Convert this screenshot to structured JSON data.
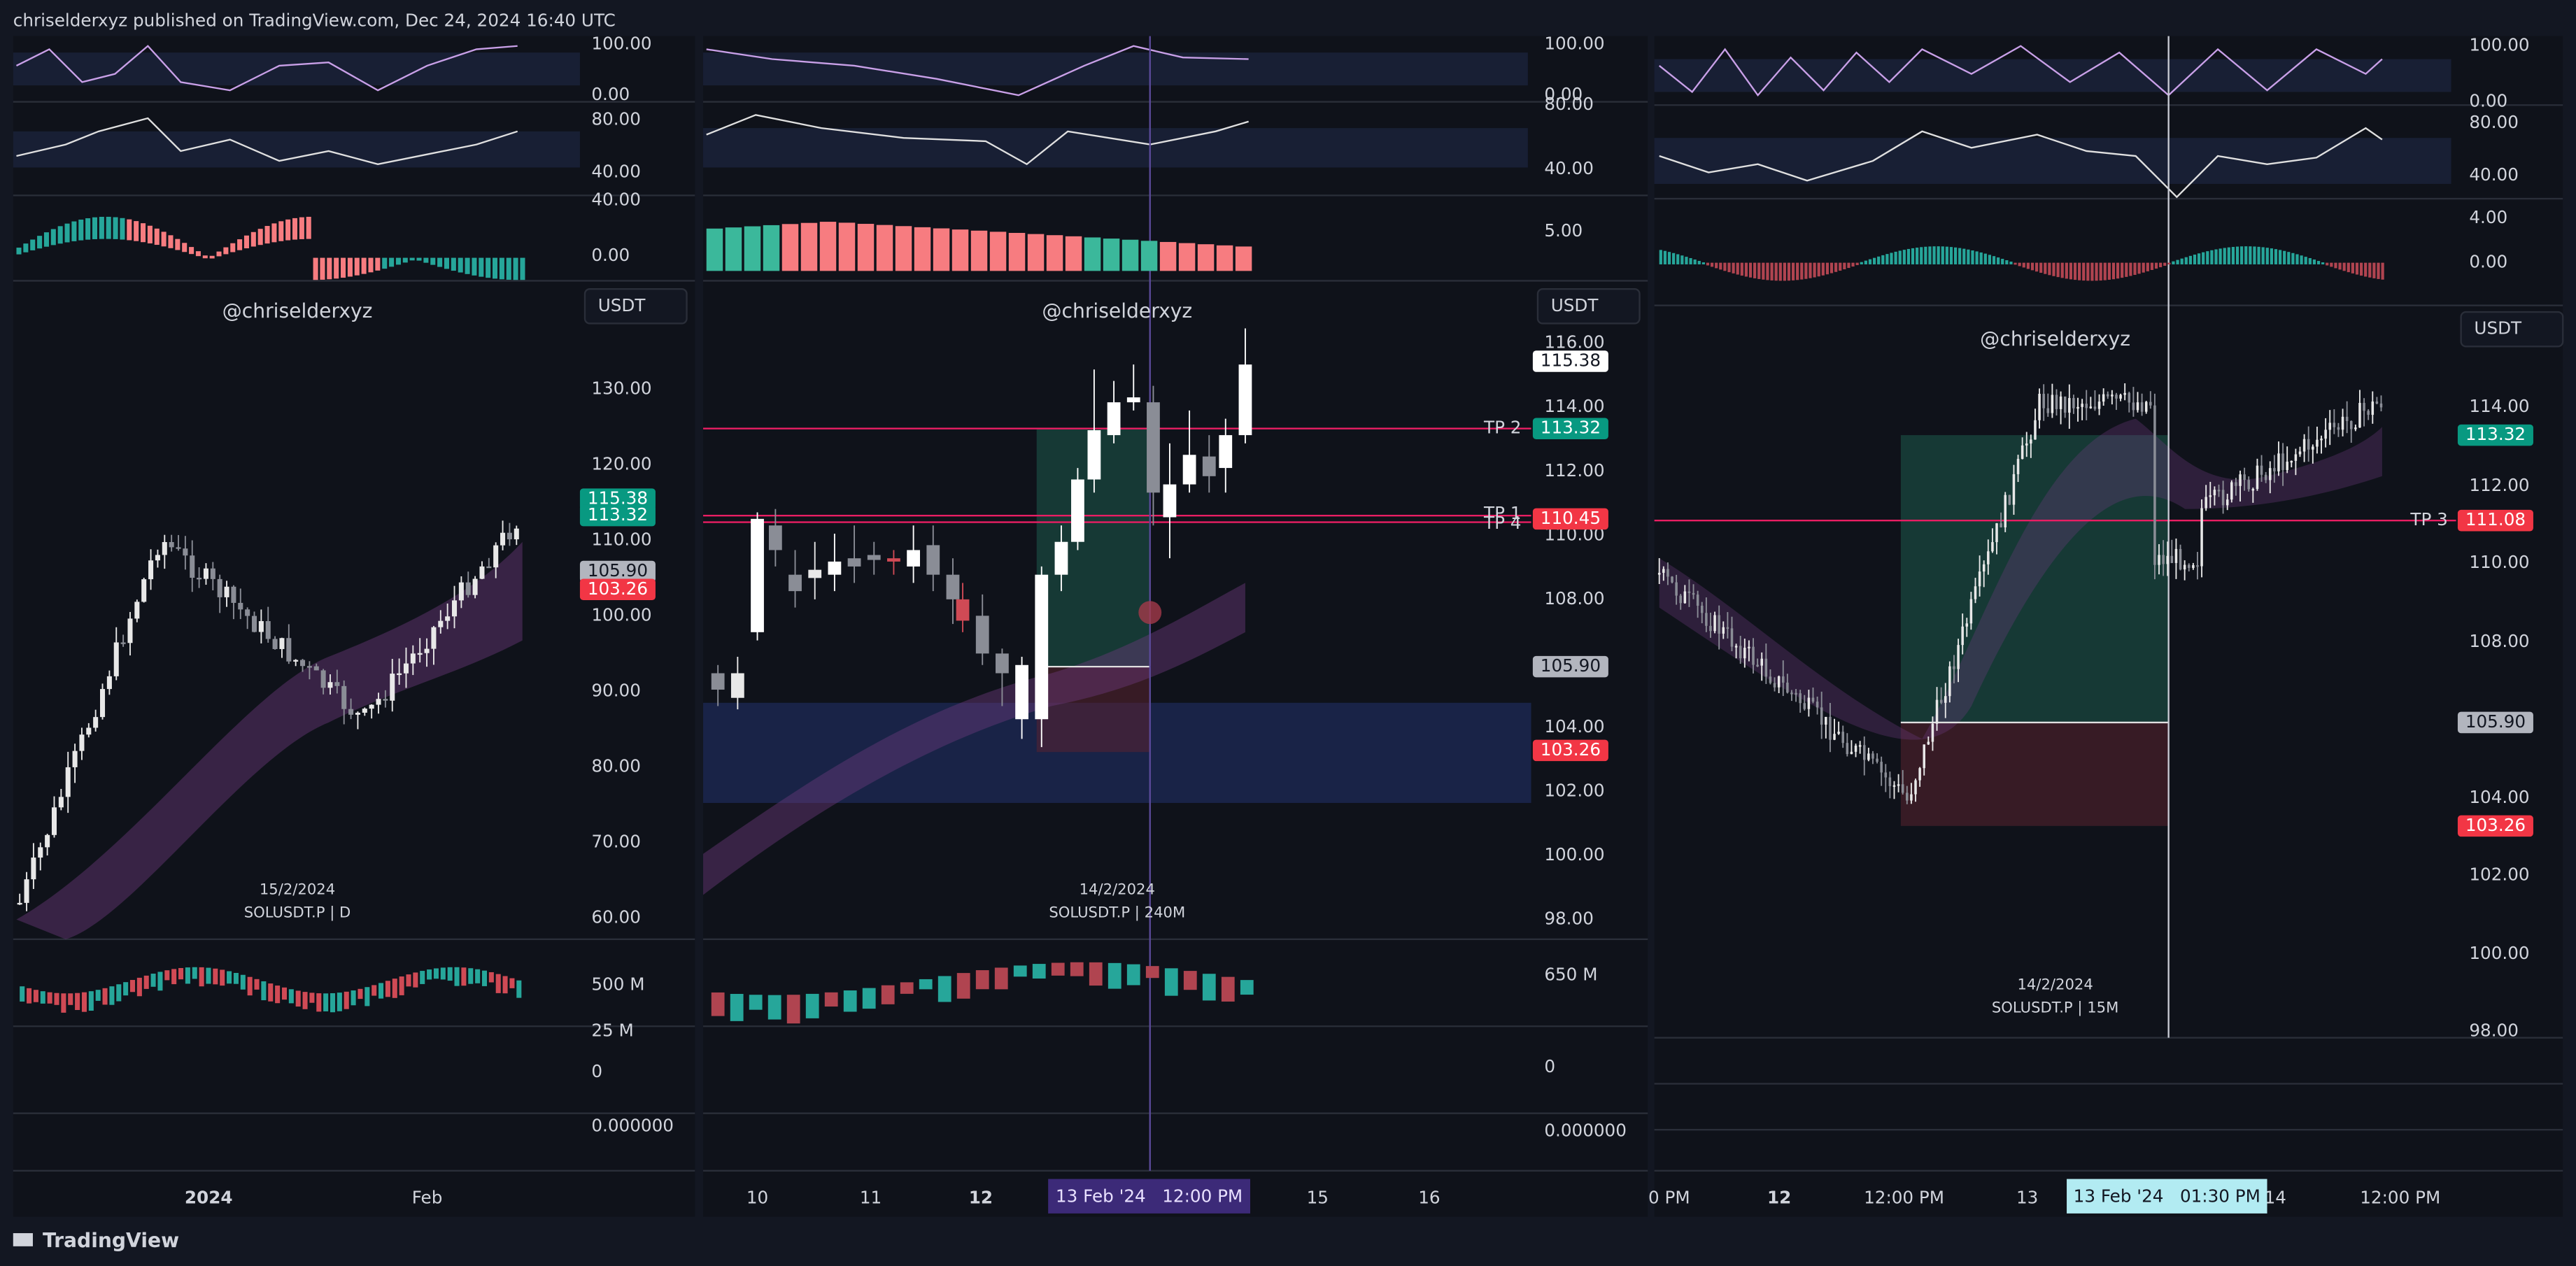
{
  "header": {
    "title": "chriselderxyz published on TradingView.com, Dec 24, 2024 16:40 UTC"
  },
  "footer": {
    "brand": "TradingView"
  },
  "panels": [
    {
      "watermark": "@chriselderxyz",
      "currency": "USDT",
      "date": "15/2/2024",
      "symbol": "SOLUSDT.P | D",
      "oscillator_axis": [
        "100.00",
        "0.00",
        "80.00",
        "40.00",
        "40.00",
        "0.00"
      ],
      "price_axis": [
        "130.00",
        "120.00",
        "110.00",
        "100.00",
        "90.00",
        "80.00",
        "70.00",
        "60.00"
      ],
      "price_tags": [
        "115.38",
        "113.32",
        "105.90",
        "103.26"
      ],
      "tp_labels": [],
      "volume_axis": [
        "500 M",
        "25 M",
        "0",
        "0.000000"
      ],
      "time_axis": [
        "2024",
        "Feb"
      ]
    },
    {
      "watermark": "@chriselderxyz",
      "currency": "USDT",
      "date": "14/2/2024",
      "symbol": "SOLUSDT.P | 240M",
      "oscillator_axis": [
        "100.00",
        "0.00",
        "80.00",
        "40.00",
        "5.00"
      ],
      "price_axis": [
        "116.00",
        "114.00",
        "112.00",
        "110.00",
        "108.00",
        "104.00",
        "102.00",
        "100.00",
        "98.00"
      ],
      "price_tags": [
        "115.38",
        "113.32",
        "110.45",
        "105.90",
        "103.26"
      ],
      "tp_labels": [
        "TP 2",
        "TP 1",
        "TP 4"
      ],
      "volume_axis": [
        "650 M",
        "0",
        "0.000000"
      ],
      "time_axis": [
        "10",
        "11",
        "12",
        "15",
        "16"
      ],
      "crosshair_time": "13 Feb '24   12:00 PM"
    },
    {
      "watermark": "@chriselderxyz",
      "currency": "USDT",
      "date": "14/2/2024",
      "symbol": "SOLUSDT.P | 15M",
      "oscillator_axis": [
        "100.00",
        "0.00",
        "80.00",
        "40.00",
        "4.00",
        "0.00"
      ],
      "price_axis": [
        "114.00",
        "112.00",
        "110.00",
        "108.00",
        "104.00",
        "102.00",
        "100.00",
        "98.00"
      ],
      "price_tags": [
        "113.32",
        "111.08",
        "105.90",
        "103.26"
      ],
      "tp_labels": [
        "TP 3"
      ],
      "volume_axis": [],
      "time_axis": [
        "0 PM",
        "12",
        "12:00 PM",
        "13",
        "14",
        "12:00 PM"
      ],
      "crosshair_time": "13 Feb '24   01:30 PM"
    }
  ]
}
